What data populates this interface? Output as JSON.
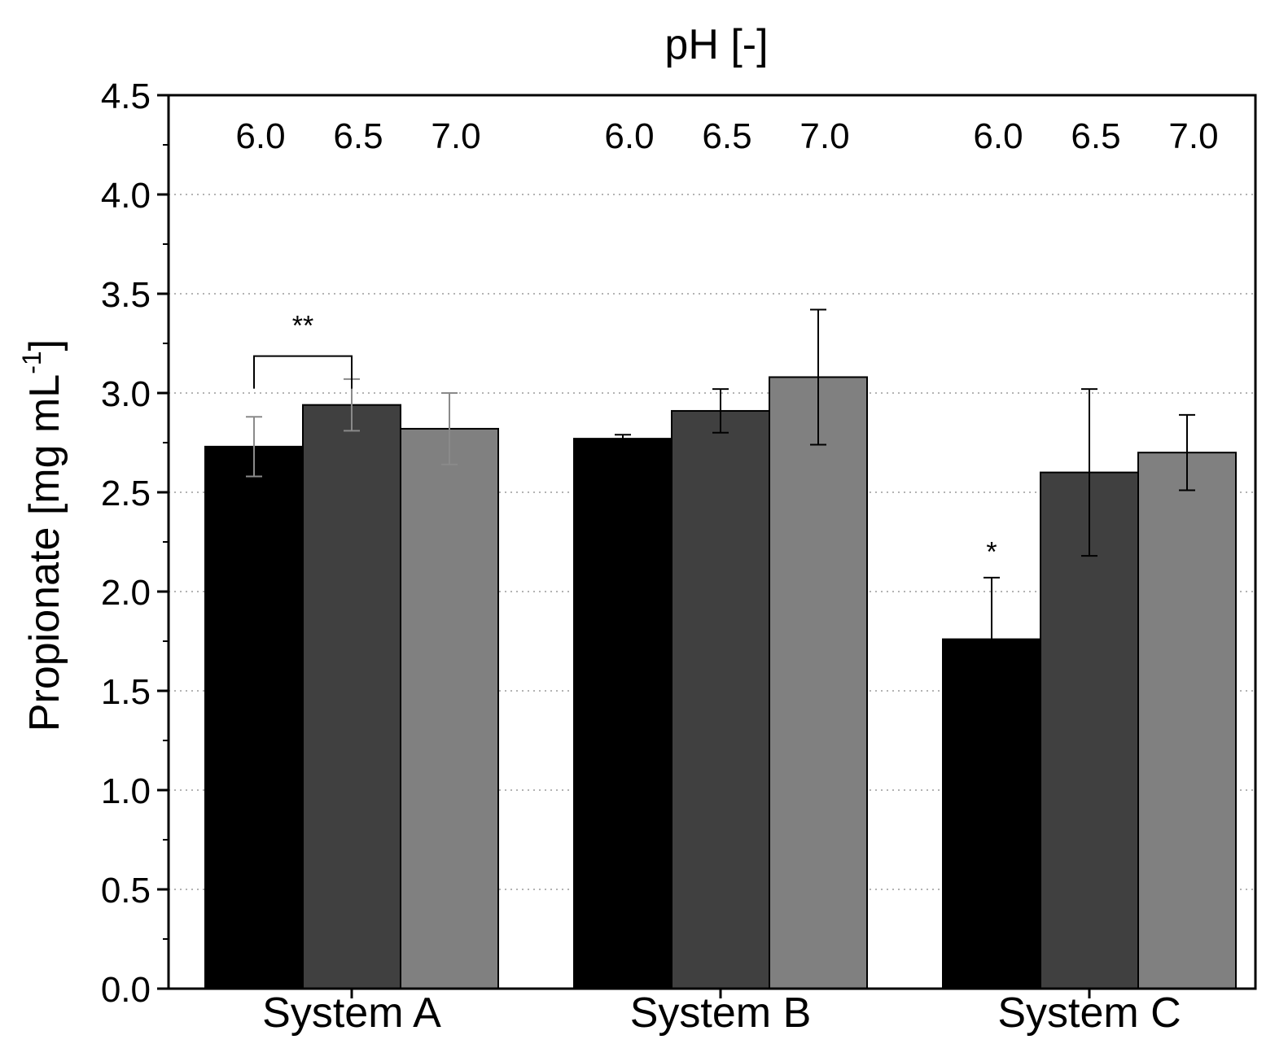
{
  "chart_data": {
    "type": "bar",
    "title": "pH [-]",
    "xlabel": "",
    "ylabel": "Propionate [mg mL",
    "ylabel_sup": "-1",
    "ylabel_close": "]",
    "ylim": [
      0,
      4.5
    ],
    "yticks": [
      "0.0",
      "0.5",
      "1.0",
      "1.5",
      "2.0",
      "2.5",
      "3.0",
      "3.5",
      "4.0",
      "4.5"
    ],
    "grid": true,
    "categories": [
      "System A",
      "System B",
      "System C"
    ],
    "ph_labels": [
      "6.0",
      "6.5",
      "7.0"
    ],
    "series": [
      {
        "name": "6.0",
        "color": "#000000",
        "values": [
          2.73,
          2.77,
          1.76
        ],
        "errors": [
          0.15,
          0.02,
          0.31
        ]
      },
      {
        "name": "6.5",
        "color": "#404040",
        "values": [
          2.94,
          2.91,
          2.6
        ],
        "errors": [
          0.13,
          0.11,
          0.42
        ]
      },
      {
        "name": "7.0",
        "color": "#808080",
        "values": [
          2.82,
          3.08,
          2.7
        ],
        "errors": [
          0.18,
          0.34,
          0.19
        ]
      }
    ],
    "annotations": [
      {
        "text": "**",
        "category": 0,
        "type": "bracket",
        "from_series": 0,
        "to_series": 1,
        "value": 3.35
      },
      {
        "text": "*",
        "category": 2,
        "type": "star",
        "series": 0,
        "value": 2.22
      }
    ]
  }
}
